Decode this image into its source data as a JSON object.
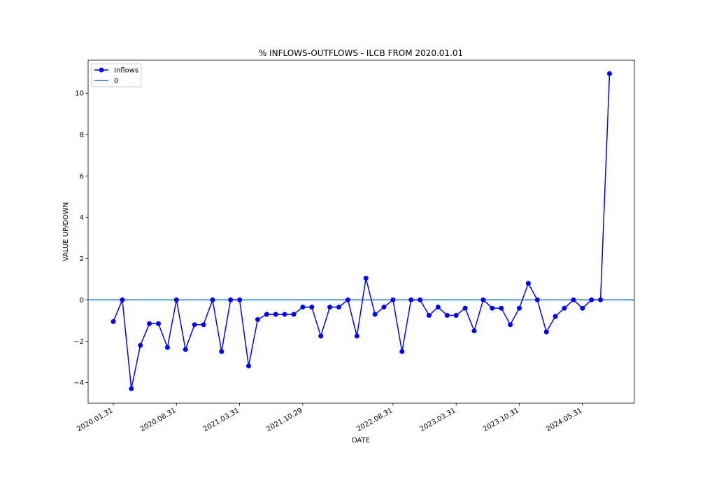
{
  "chart_data": {
    "type": "line",
    "title": "% INFLOWS-OUTFLOWS - ILCB FROM 2020.01.01",
    "xlabel": "DATE",
    "ylabel": "VALUE UP/DOWN",
    "ylim": [
      -5,
      11.6
    ],
    "yticks": [
      -4,
      -2,
      0,
      2,
      4,
      6,
      8,
      10
    ],
    "xtick_labels": [
      "2020.01.31",
      "2020.08.31",
      "2021.03.31",
      "2021.10.29",
      "2022.08.31",
      "2023.03.31",
      "2023.10.31",
      "2024.05.31"
    ],
    "xtick_index": [
      0,
      7,
      14,
      21,
      31,
      38,
      45,
      52
    ],
    "grid": false,
    "legend_position": "upper-left",
    "series": [
      {
        "name": "Inflows",
        "color": "#0000ff",
        "marker": "circle",
        "values": [
          -1.05,
          0.0,
          -4.3,
          -2.2,
          -1.15,
          -1.15,
          -2.3,
          0.0,
          -2.4,
          -1.2,
          -1.2,
          0.0,
          -2.5,
          0.0,
          0.0,
          -3.2,
          -0.95,
          -0.7,
          -0.7,
          -0.7,
          -0.7,
          -0.35,
          -0.35,
          -1.75,
          -0.35,
          -0.35,
          0.0,
          -1.75,
          1.05,
          -0.7,
          -0.35,
          0.0,
          -2.5,
          0.0,
          0.0,
          -0.75,
          -0.35,
          -0.75,
          -0.75,
          -0.4,
          -1.5,
          0.0,
          -0.4,
          -0.4,
          -1.2,
          -0.4,
          0.8,
          0.0,
          -1.55,
          -0.8,
          -0.4,
          0.0,
          -0.4,
          0.0,
          0.0,
          10.95
        ]
      }
    ],
    "reference_lines": [
      {
        "name": "0",
        "y": 0,
        "color": "#1f77b4"
      }
    ]
  }
}
